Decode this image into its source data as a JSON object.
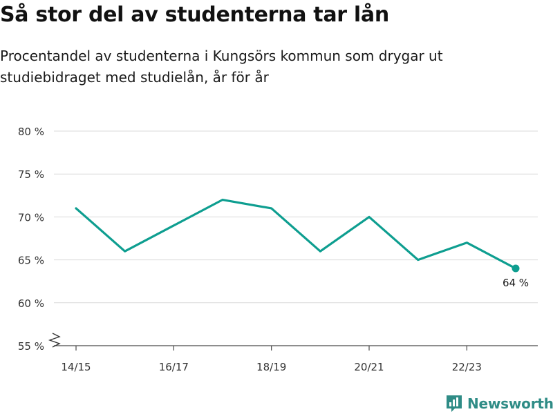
{
  "title": "Så stor del av studenterna tar lån",
  "subtitle": "Procentandel av studenterna i Kungsörs kommun som drygar ut studiebidraget med studielån, år för år",
  "brand": {
    "name": "Newsworthy",
    "logo_icon": "bar-chart-speech-bubble-icon"
  },
  "colors": {
    "line": "#0e9e90",
    "grid": "#d9d9d9",
    "axis": "#4a4a4a",
    "brand": "#2f8c86"
  },
  "chart_data": {
    "type": "line",
    "x": [
      "14/15",
      "15/16",
      "16/17",
      "17/18",
      "18/19",
      "19/20",
      "20/21",
      "21/22",
      "22/23",
      "23/24"
    ],
    "x_tick_labels": [
      "14/15",
      "16/17",
      "18/19",
      "20/21",
      "22/23"
    ],
    "y_tick_values": [
      55,
      60,
      65,
      70,
      75,
      80
    ],
    "y_tick_labels": [
      "55 %",
      "60 %",
      "65 %",
      "70 %",
      "75 %",
      "80 %"
    ],
    "ylim": [
      55,
      80
    ],
    "y_axis_break": true,
    "grid": true,
    "series": [
      {
        "values": [
          71,
          66,
          69,
          72,
          71,
          66,
          70,
          65,
          67,
          64
        ]
      }
    ],
    "annotations": [
      {
        "x": "23/24",
        "y": 64,
        "text": "64 %"
      }
    ]
  }
}
